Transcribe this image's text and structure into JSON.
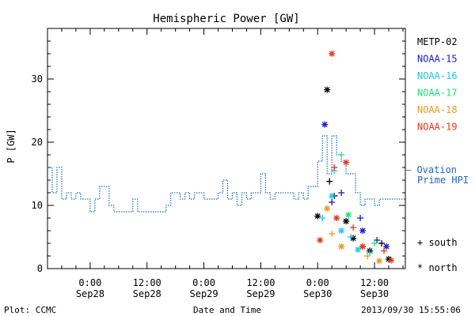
{
  "chart_data": {
    "type": "scatter",
    "title": "Hemispheric Power [GW]",
    "ylabel": "P [GW]",
    "xlabel": "Date and Time",
    "ylim": [
      0,
      38
    ],
    "xlim": [
      "2013-09-27 15:00",
      "2013-09-30 18:30"
    ],
    "yticks": [
      0,
      10,
      20,
      30
    ],
    "xticks": [
      {
        "time": "2013-09-28 00:00",
        "label": "0:00",
        "sublabel": "Sep28"
      },
      {
        "time": "2013-09-28 12:00",
        "label": "12:00",
        "sublabel": "Sep28"
      },
      {
        "time": "2013-09-29 00:00",
        "label": "0:00",
        "sublabel": "Sep29"
      },
      {
        "time": "2013-09-29 12:00",
        "label": "12:00",
        "sublabel": "Sep29"
      },
      {
        "time": "2013-09-30 00:00",
        "label": "0:00",
        "sublabel": "Sep30"
      },
      {
        "time": "2013-09-30 12:00",
        "label": "12:00",
        "sublabel": "Sep30"
      }
    ],
    "grid": false,
    "legend": {
      "placement": "right",
      "satellites": [
        {
          "name": "METP-02",
          "color": "#000000"
        },
        {
          "name": "NOAA-15",
          "color": "#1a1acc"
        },
        {
          "name": "NOAA-16",
          "color": "#22c8e6"
        },
        {
          "name": "NOAA-17",
          "color": "#22e07a"
        },
        {
          "name": "NOAA-18",
          "color": "#ee9a1a"
        },
        {
          "name": "NOAA-19",
          "color": "#e23a1a"
        }
      ],
      "ovation_line1": "— Ovation",
      "ovation_line2": "Prime HPI",
      "ovation_color": "#2266cc",
      "south_label": "+ south",
      "north_label": "* north"
    },
    "ovation_series": {
      "name": "Ovation Prime HPI",
      "style": "dotted-step",
      "points": [
        [
          "2013-09-27 15:00",
          16
        ],
        [
          "2013-09-27 16:00",
          12
        ],
        [
          "2013-09-27 17:00",
          16
        ],
        [
          "2013-09-27 18:00",
          11
        ],
        [
          "2013-09-27 19:00",
          12
        ],
        [
          "2013-09-27 20:00",
          11
        ],
        [
          "2013-09-27 21:00",
          12
        ],
        [
          "2013-09-27 22:00",
          11
        ],
        [
          "2013-09-28 00:00",
          9
        ],
        [
          "2013-09-28 01:00",
          11
        ],
        [
          "2013-09-28 02:00",
          13
        ],
        [
          "2013-09-28 04:00",
          10
        ],
        [
          "2013-09-28 05:00",
          9
        ],
        [
          "2013-09-28 09:00",
          11
        ],
        [
          "2013-09-28 10:00",
          9
        ],
        [
          "2013-09-28 16:00",
          10
        ],
        [
          "2013-09-28 17:00",
          12
        ],
        [
          "2013-09-28 19:00",
          11
        ],
        [
          "2013-09-28 20:00",
          12
        ],
        [
          "2013-09-28 21:00",
          11
        ],
        [
          "2013-09-28 22:00",
          12
        ],
        [
          "2013-09-29 00:00",
          11
        ],
        [
          "2013-09-29 03:00",
          12
        ],
        [
          "2013-09-29 04:00",
          14
        ],
        [
          "2013-09-29 05:00",
          11
        ],
        [
          "2013-09-29 06:00",
          12
        ],
        [
          "2013-09-29 07:00",
          10
        ],
        [
          "2013-09-29 08:00",
          12
        ],
        [
          "2013-09-29 09:00",
          11
        ],
        [
          "2013-09-29 10:00",
          12
        ],
        [
          "2013-09-29 12:00",
          15
        ],
        [
          "2013-09-29 13:00",
          12
        ],
        [
          "2013-09-29 14:00",
          11
        ],
        [
          "2013-09-29 15:00",
          12
        ],
        [
          "2013-09-29 19:00",
          11
        ],
        [
          "2013-09-29 20:00",
          12
        ],
        [
          "2013-09-29 21:00",
          11
        ],
        [
          "2013-09-29 22:00",
          13
        ],
        [
          "2013-09-30 00:00",
          17
        ],
        [
          "2013-09-30 01:00",
          21
        ],
        [
          "2013-09-30 02:00",
          15
        ],
        [
          "2013-09-30 03:00",
          21
        ],
        [
          "2013-09-30 04:00",
          18
        ],
        [
          "2013-09-30 05:00",
          17
        ],
        [
          "2013-09-30 06:00",
          15
        ],
        [
          "2013-09-30 08:00",
          12
        ],
        [
          "2013-09-30 09:00",
          10
        ],
        [
          "2013-09-30 10:00",
          11
        ],
        [
          "2013-09-30 12:00",
          10
        ],
        [
          "2013-09-30 13:00",
          11
        ],
        [
          "2013-09-30 18:30",
          11
        ]
      ]
    },
    "satellite_points": [
      {
        "sat": "METP-02",
        "hemi": "north",
        "x": "2013-09-30 02:00",
        "y": 28.3
      },
      {
        "sat": "METP-02",
        "hemi": "south",
        "x": "2013-09-30 02:30",
        "y": 13.8
      },
      {
        "sat": "METP-02",
        "hemi": "south",
        "x": "2013-09-30 03:30",
        "y": 11.5
      },
      {
        "sat": "METP-02",
        "hemi": "north",
        "x": "2013-09-30 00:00",
        "y": 8.3
      },
      {
        "sat": "METP-02",
        "hemi": "north",
        "x": "2013-09-30 06:00",
        "y": 7.5
      },
      {
        "sat": "METP-02",
        "hemi": "north",
        "x": "2013-09-30 07:30",
        "y": 4.8
      },
      {
        "sat": "METP-02",
        "hemi": "south",
        "x": "2013-09-30 09:30",
        "y": 3.5
      },
      {
        "sat": "METP-02",
        "hemi": "north",
        "x": "2013-09-30 11:00",
        "y": 2.8
      },
      {
        "sat": "METP-02",
        "hemi": "south",
        "x": "2013-09-30 13:30",
        "y": 4.0
      },
      {
        "sat": "METP-02",
        "hemi": "north",
        "x": "2013-09-30 15:00",
        "y": 1.5
      },
      {
        "sat": "NOAA-15",
        "hemi": "north",
        "x": "2013-09-30 01:30",
        "y": 22.8
      },
      {
        "sat": "NOAA-15",
        "hemi": "south",
        "x": "2013-09-30 03:00",
        "y": 10.5
      },
      {
        "sat": "NOAA-15",
        "hemi": "south",
        "x": "2013-09-30 05:00",
        "y": 12.0
      },
      {
        "sat": "NOAA-15",
        "hemi": "south",
        "x": "2013-09-30 09:00",
        "y": 8.0
      },
      {
        "sat": "NOAA-15",
        "hemi": "north",
        "x": "2013-09-30 09:30",
        "y": 6.0
      },
      {
        "sat": "NOAA-15",
        "hemi": "south",
        "x": "2013-09-30 12:30",
        "y": 4.5
      },
      {
        "sat": "NOAA-15",
        "hemi": "north",
        "x": "2013-09-30 14:30",
        "y": 3.5
      },
      {
        "sat": "NOAA-16",
        "hemi": "south",
        "x": "2013-09-30 03:30",
        "y": 15.5
      },
      {
        "sat": "NOAA-16",
        "hemi": "north",
        "x": "2013-09-30 03:00",
        "y": 11.5
      },
      {
        "sat": "NOAA-16",
        "hemi": "south",
        "x": "2013-09-30 01:00",
        "y": 8.0
      },
      {
        "sat": "NOAA-16",
        "hemi": "north",
        "x": "2013-09-30 05:00",
        "y": 6.0
      },
      {
        "sat": "NOAA-16",
        "hemi": "south",
        "x": "2013-09-30 07:00",
        "y": 5.0
      },
      {
        "sat": "NOAA-16",
        "hemi": "north",
        "x": "2013-09-30 08:30",
        "y": 3.0
      },
      {
        "sat": "NOAA-16",
        "hemi": "south",
        "x": "2013-09-30 11:00",
        "y": 2.5
      },
      {
        "sat": "NOAA-17",
        "hemi": "south",
        "x": "2013-09-30 05:00",
        "y": 18.0
      },
      {
        "sat": "NOAA-17",
        "hemi": "north",
        "x": "2013-09-30 06:30",
        "y": 8.5
      },
      {
        "sat": "NOAA-17",
        "hemi": "south",
        "x": "2013-09-30 12:00",
        "y": 4.0
      },
      {
        "sat": "NOAA-18",
        "hemi": "north",
        "x": "2013-09-30 02:00",
        "y": 9.5
      },
      {
        "sat": "NOAA-18",
        "hemi": "south",
        "x": "2013-09-30 03:00",
        "y": 5.5
      },
      {
        "sat": "NOAA-18",
        "hemi": "north",
        "x": "2013-09-30 05:00",
        "y": 3.5
      },
      {
        "sat": "NOAA-18",
        "hemi": "south",
        "x": "2013-09-30 10:30",
        "y": 2.0
      },
      {
        "sat": "NOAA-18",
        "hemi": "north",
        "x": "2013-09-30 13:00",
        "y": 1.2
      },
      {
        "sat": "NOAA-19",
        "hemi": "north",
        "x": "2013-09-30 03:00",
        "y": 34.0
      },
      {
        "sat": "NOAA-19",
        "hemi": "south",
        "x": "2013-09-30 03:30",
        "y": 16.0
      },
      {
        "sat": "NOAA-19",
        "hemi": "north",
        "x": "2013-09-30 06:00",
        "y": 16.8
      },
      {
        "sat": "NOAA-19",
        "hemi": "north",
        "x": "2013-09-30 00:30",
        "y": 4.5
      },
      {
        "sat": "NOAA-19",
        "hemi": "north",
        "x": "2013-09-30 04:00",
        "y": 8.0
      },
      {
        "sat": "NOAA-19",
        "hemi": "south",
        "x": "2013-09-30 07:30",
        "y": 6.5
      },
      {
        "sat": "NOAA-19",
        "hemi": "north",
        "x": "2013-09-30 09:30",
        "y": 3.5
      },
      {
        "sat": "NOAA-19",
        "hemi": "south",
        "x": "2013-09-30 14:00",
        "y": 2.8
      },
      {
        "sat": "NOAA-19",
        "hemi": "north",
        "x": "2013-09-30 15:30",
        "y": 1.3
      }
    ]
  },
  "footer": {
    "left": "Plot: CCMC",
    "center": "Date and Time",
    "right": "2013/09/30 15:55:06"
  }
}
